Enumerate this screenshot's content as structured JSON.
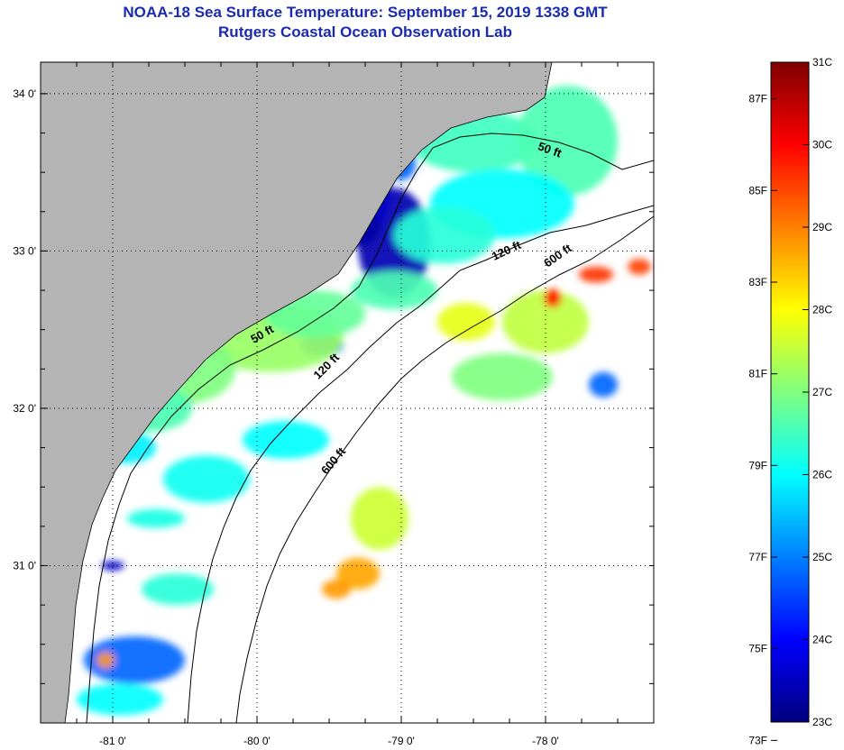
{
  "title": {
    "line1": "NOAA-18 Sea Surface Temperature:  September 15, 2019 1338 GMT",
    "line2": "Rutgers Coastal Ocean Observation Lab"
  },
  "map": {
    "lon_range": [
      -81.5,
      -77.25
    ],
    "lat_range": [
      30.0,
      34.2
    ],
    "lon_ticks": [
      {
        "value": -81,
        "label": "-81 0'"
      },
      {
        "value": -80,
        "label": "-80 0'"
      },
      {
        "value": -79,
        "label": "-79 0'"
      },
      {
        "value": -78,
        "label": "-78 0'"
      }
    ],
    "lat_ticks": [
      {
        "value": 34,
        "label": "34 0'"
      },
      {
        "value": 33,
        "label": "33 0'"
      },
      {
        "value": 32,
        "label": "32 0'"
      },
      {
        "value": 31,
        "label": "31 0'"
      }
    ],
    "land_color": "#b4b4b4",
    "no_data_color": "#ffffff",
    "isobath_labels": [
      {
        "text": "50 ft",
        "lon": -77.98,
        "lat": 33.62,
        "rotate": 20
      },
      {
        "text": "120 ft",
        "lon": -78.26,
        "lat": 32.98,
        "rotate": -25
      },
      {
        "text": "600 ft",
        "lon": -77.9,
        "lat": 32.95,
        "rotate": -35
      },
      {
        "text": "50 ft",
        "lon": -79.95,
        "lat": 32.45,
        "rotate": -30
      },
      {
        "text": "120 ft",
        "lon": -79.5,
        "lat": 32.25,
        "rotate": -45
      },
      {
        "text": "600 ft",
        "lon": -79.45,
        "lat": 31.65,
        "rotate": -50
      }
    ]
  },
  "colorbar": {
    "min_c": 23,
    "max_c": 31,
    "colors": [
      "#00007f",
      "#0000ff",
      "#0080ff",
      "#00ffff",
      "#80ff80",
      "#ffff00",
      "#ff8000",
      "#ff0000",
      "#7f0000"
    ],
    "celsius_ticks": [
      {
        "value": 31,
        "label": "31C"
      },
      {
        "value": 30,
        "label": "30C"
      },
      {
        "value": 29,
        "label": "29C"
      },
      {
        "value": 28,
        "label": "28C"
      },
      {
        "value": 27,
        "label": "27C"
      },
      {
        "value": 26,
        "label": "26C"
      },
      {
        "value": 25,
        "label": "25C"
      },
      {
        "value": 24,
        "label": "24C"
      },
      {
        "value": 23,
        "label": "23C"
      }
    ],
    "fahrenheit_ticks": [
      {
        "value": 87,
        "label": "87F"
      },
      {
        "value": 85,
        "label": "85F"
      },
      {
        "value": 83,
        "label": "83F"
      },
      {
        "value": 81,
        "label": "81F"
      },
      {
        "value": 79,
        "label": "79F"
      },
      {
        "value": 77,
        "label": "77F"
      },
      {
        "value": 75,
        "label": "75F"
      },
      {
        "value": 73,
        "label": "73F"
      }
    ]
  },
  "sst_patches": [
    {
      "lon": -79.05,
      "lat": 33.05,
      "temp": 23.4,
      "rx": 0.25,
      "ry": 0.35
    },
    {
      "lon": -79.2,
      "lat": 33.4,
      "temp": 23.6,
      "rx": 0.12,
      "ry": 0.25
    },
    {
      "lon": -79.3,
      "lat": 33.15,
      "temp": 23.3,
      "rx": 0.15,
      "ry": 0.12
    },
    {
      "lon": -79.55,
      "lat": 32.4,
      "temp": 24.5,
      "rx": 0.15,
      "ry": 0.07
    },
    {
      "lon": -79.0,
      "lat": 33.55,
      "temp": 24.8,
      "rx": 0.1,
      "ry": 0.1
    },
    {
      "lon": -78.5,
      "lat": 33.7,
      "temp": 26.5,
      "rx": 0.45,
      "ry": 0.2
    },
    {
      "lon": -77.85,
      "lat": 33.7,
      "temp": 26.6,
      "rx": 0.35,
      "ry": 0.35
    },
    {
      "lon": -78.3,
      "lat": 33.3,
      "temp": 26.0,
      "rx": 0.5,
      "ry": 0.22
    },
    {
      "lon": -78.7,
      "lat": 33.1,
      "temp": 26.3,
      "rx": 0.35,
      "ry": 0.18
    },
    {
      "lon": -79.05,
      "lat": 32.75,
      "temp": 26.6,
      "rx": 0.3,
      "ry": 0.12
    },
    {
      "lon": -79.9,
      "lat": 32.45,
      "temp": 27.2,
      "rx": 0.5,
      "ry": 0.22
    },
    {
      "lon": -80.5,
      "lat": 32.25,
      "temp": 27.0,
      "rx": 0.35,
      "ry": 0.22
    },
    {
      "lon": -80.75,
      "lat": 32.0,
      "temp": 26.6,
      "rx": 0.3,
      "ry": 0.15
    },
    {
      "lon": -79.6,
      "lat": 32.6,
      "temp": 26.8,
      "rx": 0.35,
      "ry": 0.15
    },
    {
      "lon": -79.8,
      "lat": 31.8,
      "temp": 26.0,
      "rx": 0.3,
      "ry": 0.12
    },
    {
      "lon": -80.35,
      "lat": 31.55,
      "temp": 26.1,
      "rx": 0.3,
      "ry": 0.15
    },
    {
      "lon": -80.9,
      "lat": 31.75,
      "temp": 25.9,
      "rx": 0.2,
      "ry": 0.1
    },
    {
      "lon": -78.55,
      "lat": 32.55,
      "temp": 27.8,
      "rx": 0.2,
      "ry": 0.12
    },
    {
      "lon": -78.0,
      "lat": 32.55,
      "temp": 27.5,
      "rx": 0.3,
      "ry": 0.2
    },
    {
      "lon": -77.65,
      "lat": 32.85,
      "temp": 29.6,
      "rx": 0.12,
      "ry": 0.05
    },
    {
      "lon": -77.95,
      "lat": 32.7,
      "temp": 29.8,
      "rx": 0.06,
      "ry": 0.06
    },
    {
      "lon": -77.35,
      "lat": 32.9,
      "temp": 29.5,
      "rx": 0.08,
      "ry": 0.05
    },
    {
      "lon": -77.6,
      "lat": 32.15,
      "temp": 24.8,
      "rx": 0.1,
      "ry": 0.08
    },
    {
      "lon": -78.3,
      "lat": 32.2,
      "temp": 27.0,
      "rx": 0.35,
      "ry": 0.15
    },
    {
      "lon": -79.15,
      "lat": 31.3,
      "temp": 27.6,
      "rx": 0.2,
      "ry": 0.2
    },
    {
      "lon": -79.3,
      "lat": 30.95,
      "temp": 28.7,
      "rx": 0.15,
      "ry": 0.1
    },
    {
      "lon": -79.45,
      "lat": 30.85,
      "temp": 28.8,
      "rx": 0.1,
      "ry": 0.06
    },
    {
      "lon": -80.85,
      "lat": 30.4,
      "temp": 24.8,
      "rx": 0.35,
      "ry": 0.15
    },
    {
      "lon": -81.05,
      "lat": 30.4,
      "temp": 28.8,
      "rx": 0.06,
      "ry": 0.05
    },
    {
      "lon": -80.95,
      "lat": 30.15,
      "temp": 26.0,
      "rx": 0.3,
      "ry": 0.1
    },
    {
      "lon": -80.55,
      "lat": 30.85,
      "temp": 26.3,
      "rx": 0.25,
      "ry": 0.1
    },
    {
      "lon": -81.0,
      "lat": 31.0,
      "temp": 23.6,
      "rx": 0.08,
      "ry": 0.03
    },
    {
      "lon": -80.7,
      "lat": 31.3,
      "temp": 26.2,
      "rx": 0.2,
      "ry": 0.06
    }
  ]
}
